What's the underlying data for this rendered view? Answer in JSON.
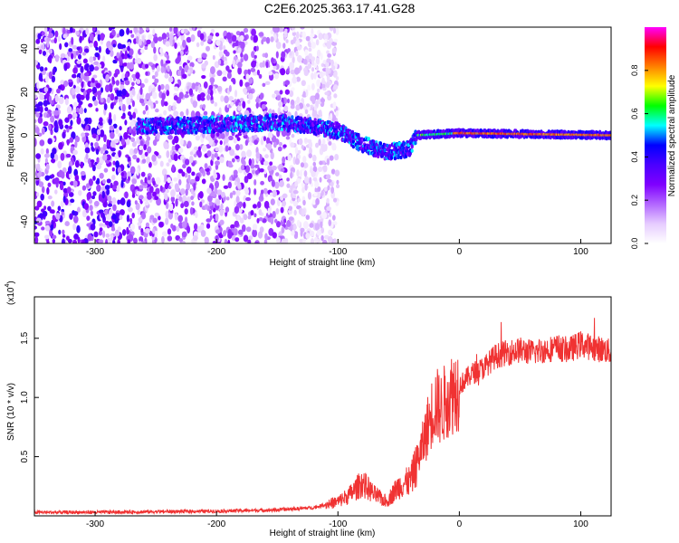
{
  "title": "C2E6.2025.363.17.41.G28",
  "chart_data": [
    {
      "type": "heatmap",
      "xlabel": "Height of straight line (km)",
      "ylabel": "Frequency (Hz)",
      "xlim": [
        -350,
        125
      ],
      "ylim": [
        -50,
        50
      ],
      "xticks": [
        -300,
        -200,
        -100,
        0,
        100
      ],
      "yticks": [
        -40,
        -20,
        0,
        20,
        40
      ],
      "colorbar": {
        "label": "Normalized spectral amplitude",
        "range": [
          0,
          1
        ],
        "ticks": [
          "0.0",
          "0.2",
          "0.4",
          "0.6",
          "0.8"
        ],
        "colormap": [
          "#ffffff",
          "#e6ccff",
          "#b266ff",
          "#7f00ff",
          "#4b00ff",
          "#0000ff",
          "#00ffff",
          "#00ff00",
          "#ffff00",
          "#ff8000",
          "#ff0000",
          "#ff00ff"
        ]
      },
      "features": {
        "noise_region_x": [
          -350,
          -140
        ],
        "signal_band": [
          {
            "x": -265,
            "f": 4
          },
          {
            "x": -200,
            "f": 5
          },
          {
            "x": -150,
            "f": 6
          },
          {
            "x": -120,
            "f": 4
          },
          {
            "x": -100,
            "f": 2
          },
          {
            "x": -80,
            "f": -4
          },
          {
            "x": -60,
            "f": -8
          },
          {
            "x": -40,
            "f": -6
          },
          {
            "x": -35,
            "f": 0
          },
          {
            "x": 0,
            "f": 1
          },
          {
            "x": 125,
            "f": 0
          }
        ],
        "peak_amplitude": 0.9
      }
    },
    {
      "type": "line",
      "xlabel": "Height of straight line (km)",
      "ylabel": "SNR (10 * v/v)",
      "scale_label": "(x10",
      "scale_exponent": "4",
      "xlim": [
        -350,
        125
      ],
      "ylim": [
        0,
        18500
      ],
      "xticks": [
        -300,
        -200,
        -100,
        0,
        100
      ],
      "yticks": [
        "0.5",
        "1.0",
        "1.5"
      ],
      "ytick_values": [
        5000,
        10000,
        15000
      ],
      "color": "#f03232",
      "series": [
        {
          "x": [
            -350,
            -300,
            -250,
            -200,
            -150,
            -120,
            -100,
            -90,
            -80,
            -70,
            -60,
            -50,
            -40,
            -30,
            -25,
            -20,
            -15,
            -10,
            -5,
            0,
            10,
            20,
            30,
            40,
            50,
            60,
            70,
            80,
            90,
            100,
            110,
            120,
            125
          ],
          "y": [
            300,
            300,
            350,
            400,
            500,
            700,
            1200,
            1800,
            2800,
            1800,
            1200,
            2500,
            3000,
            6000,
            8000,
            9500,
            9000,
            10000,
            10500,
            11000,
            12000,
            12500,
            13500,
            13800,
            14000,
            13800,
            14000,
            14200,
            14000,
            14500,
            14200,
            14000,
            13800
          ]
        }
      ]
    }
  ]
}
